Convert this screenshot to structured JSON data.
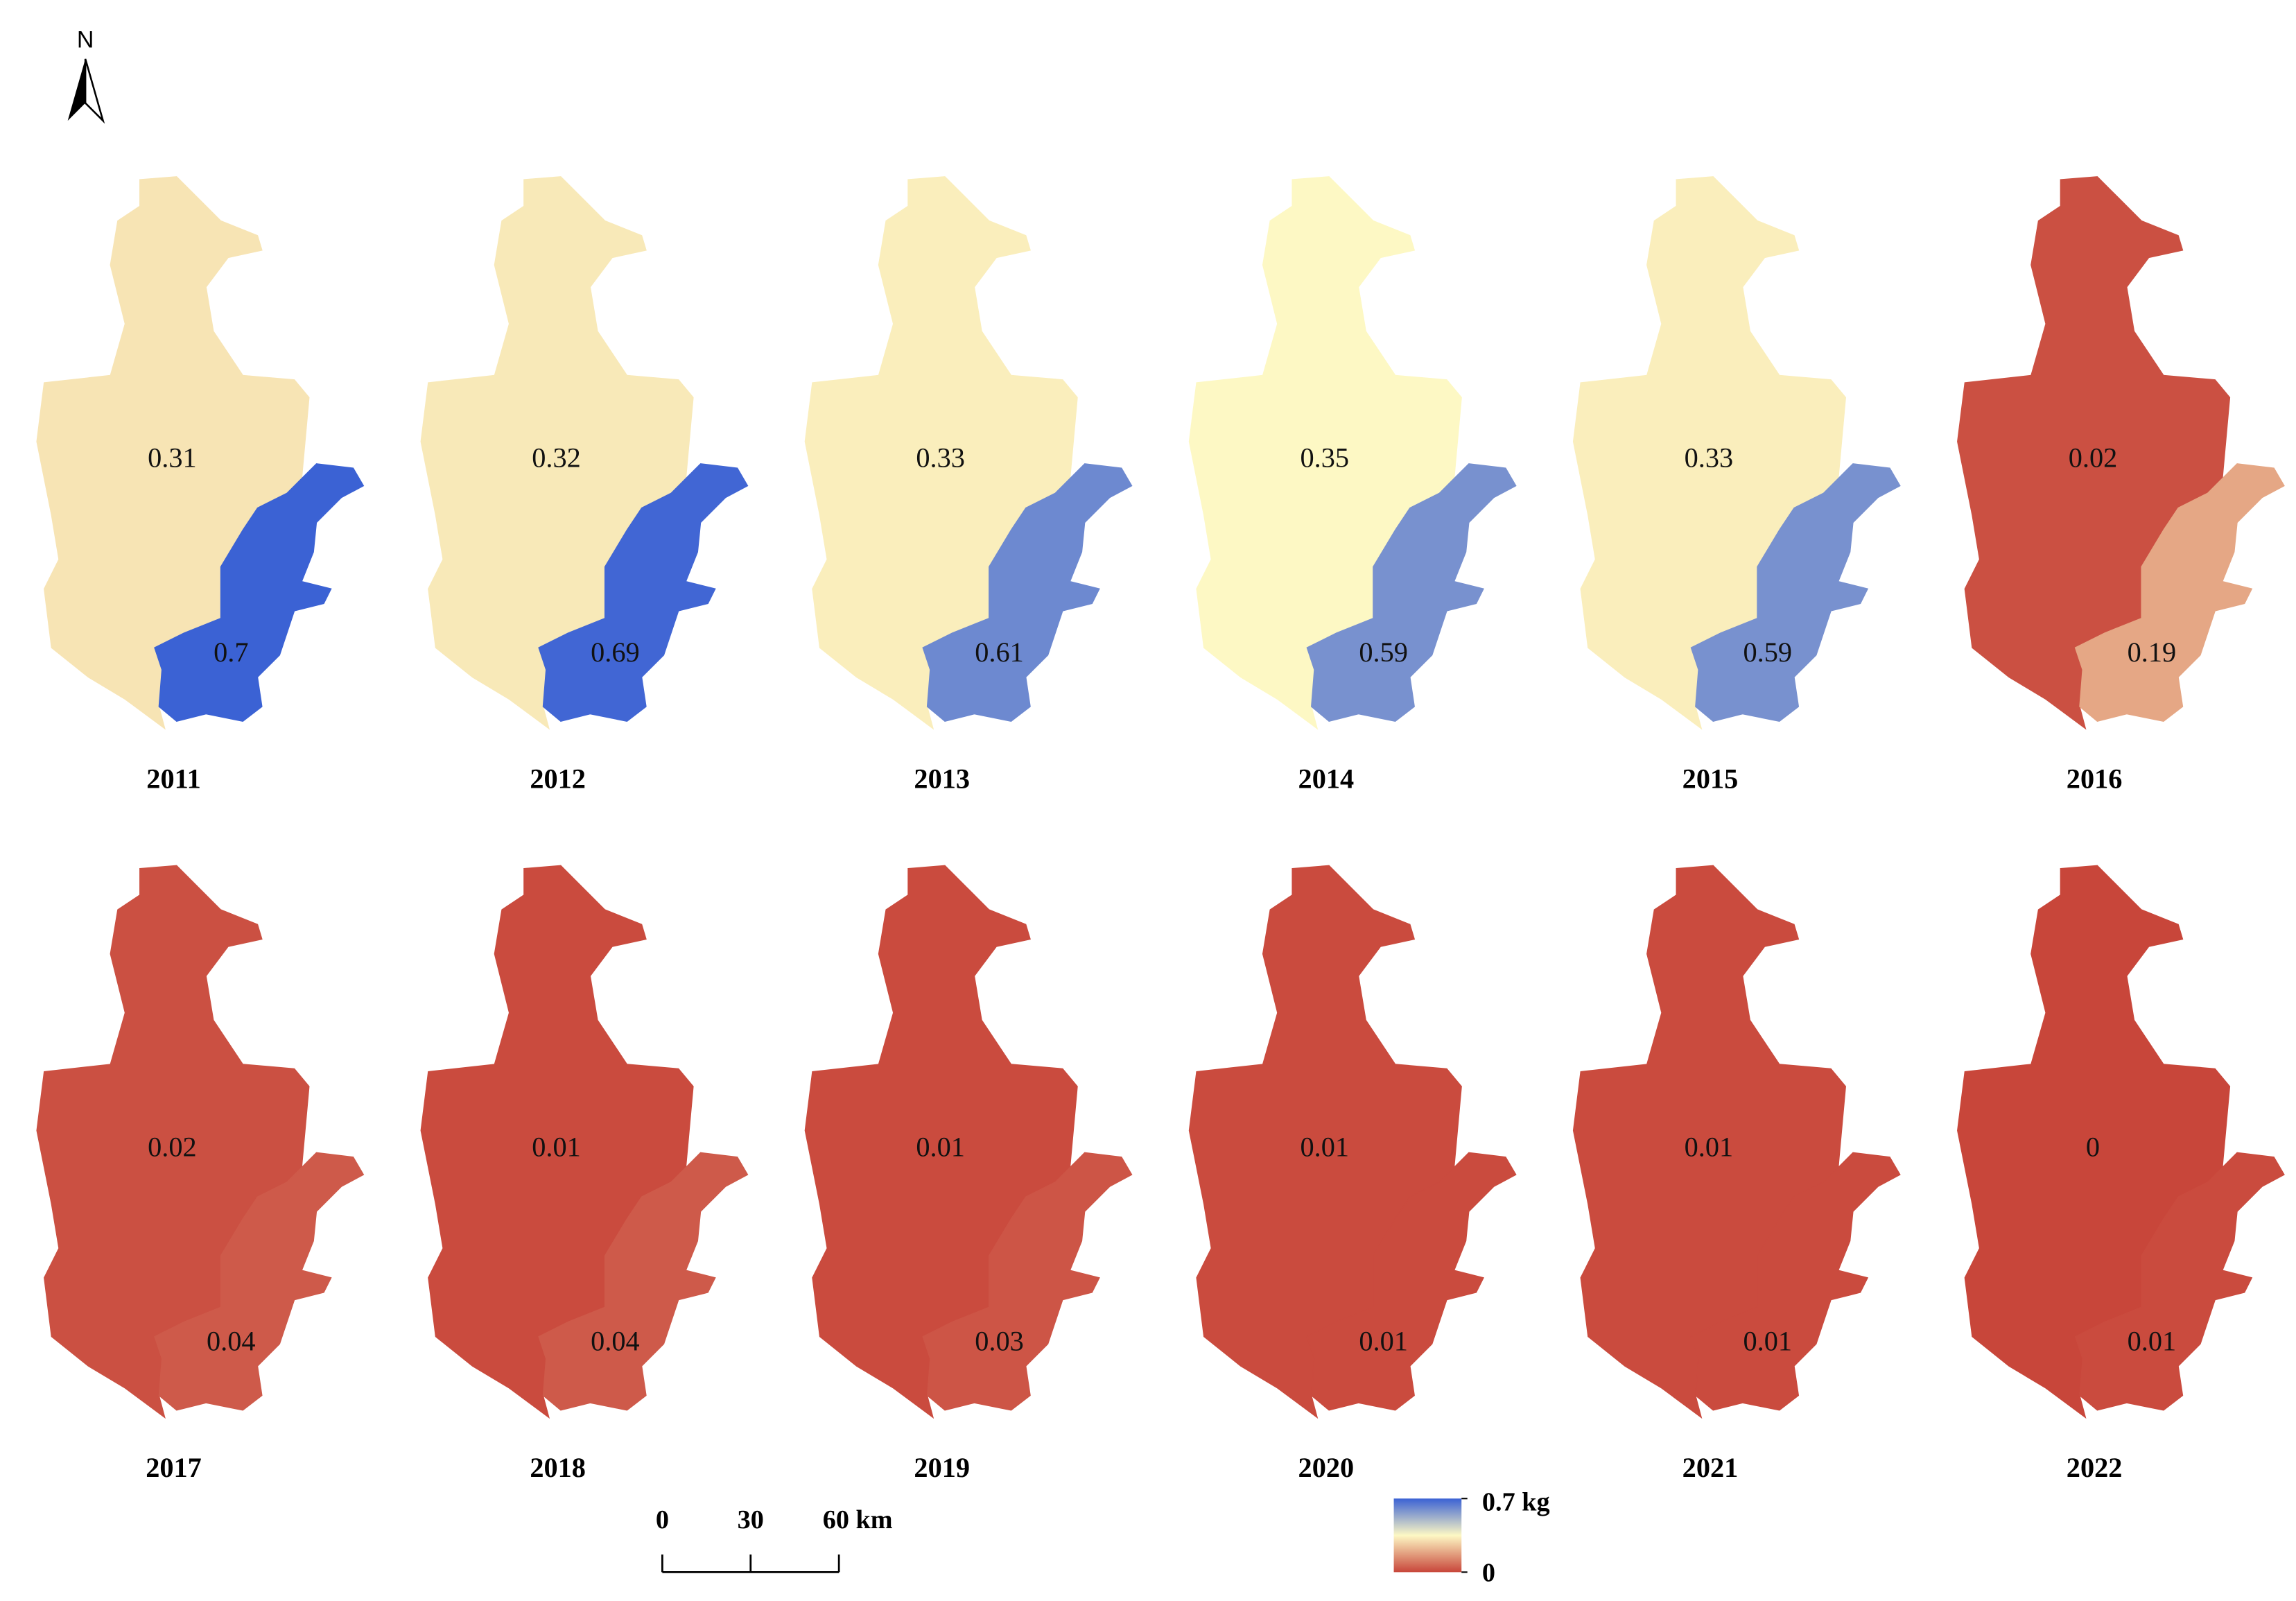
{
  "north_label": "N",
  "panels": [
    {
      "year": "2011",
      "west": 0.31,
      "east": 0.7
    },
    {
      "year": "2012",
      "west": 0.32,
      "east": 0.69
    },
    {
      "year": "2013",
      "west": 0.33,
      "east": 0.61
    },
    {
      "year": "2014",
      "west": 0.35,
      "east": 0.59
    },
    {
      "year": "2015",
      "west": 0.33,
      "east": 0.59
    },
    {
      "year": "2016",
      "west": 0.02,
      "east": 0.19
    },
    {
      "year": "2017",
      "west": 0.02,
      "east": 0.04
    },
    {
      "year": "2018",
      "west": 0.01,
      "east": 0.04
    },
    {
      "year": "2019",
      "west": 0.01,
      "east": 0.03
    },
    {
      "year": "2020",
      "west": 0.01,
      "east": 0.01
    },
    {
      "year": "2021",
      "west": 0.01,
      "east": 0.01
    },
    {
      "year": "2022",
      "west": 0,
      "east": 0.01
    }
  ],
  "scale_bar": {
    "ticks": [
      0,
      30,
      {
        "value": 60,
        "label": "60 km"
      }
    ]
  },
  "legend": {
    "ticks": [
      {
        "value": 0.7,
        "label": "0.7 kg"
      },
      0
    ],
    "colors": [
      "#c8463a",
      "#fdf8c4",
      "#3b62d4"
    ]
  }
}
